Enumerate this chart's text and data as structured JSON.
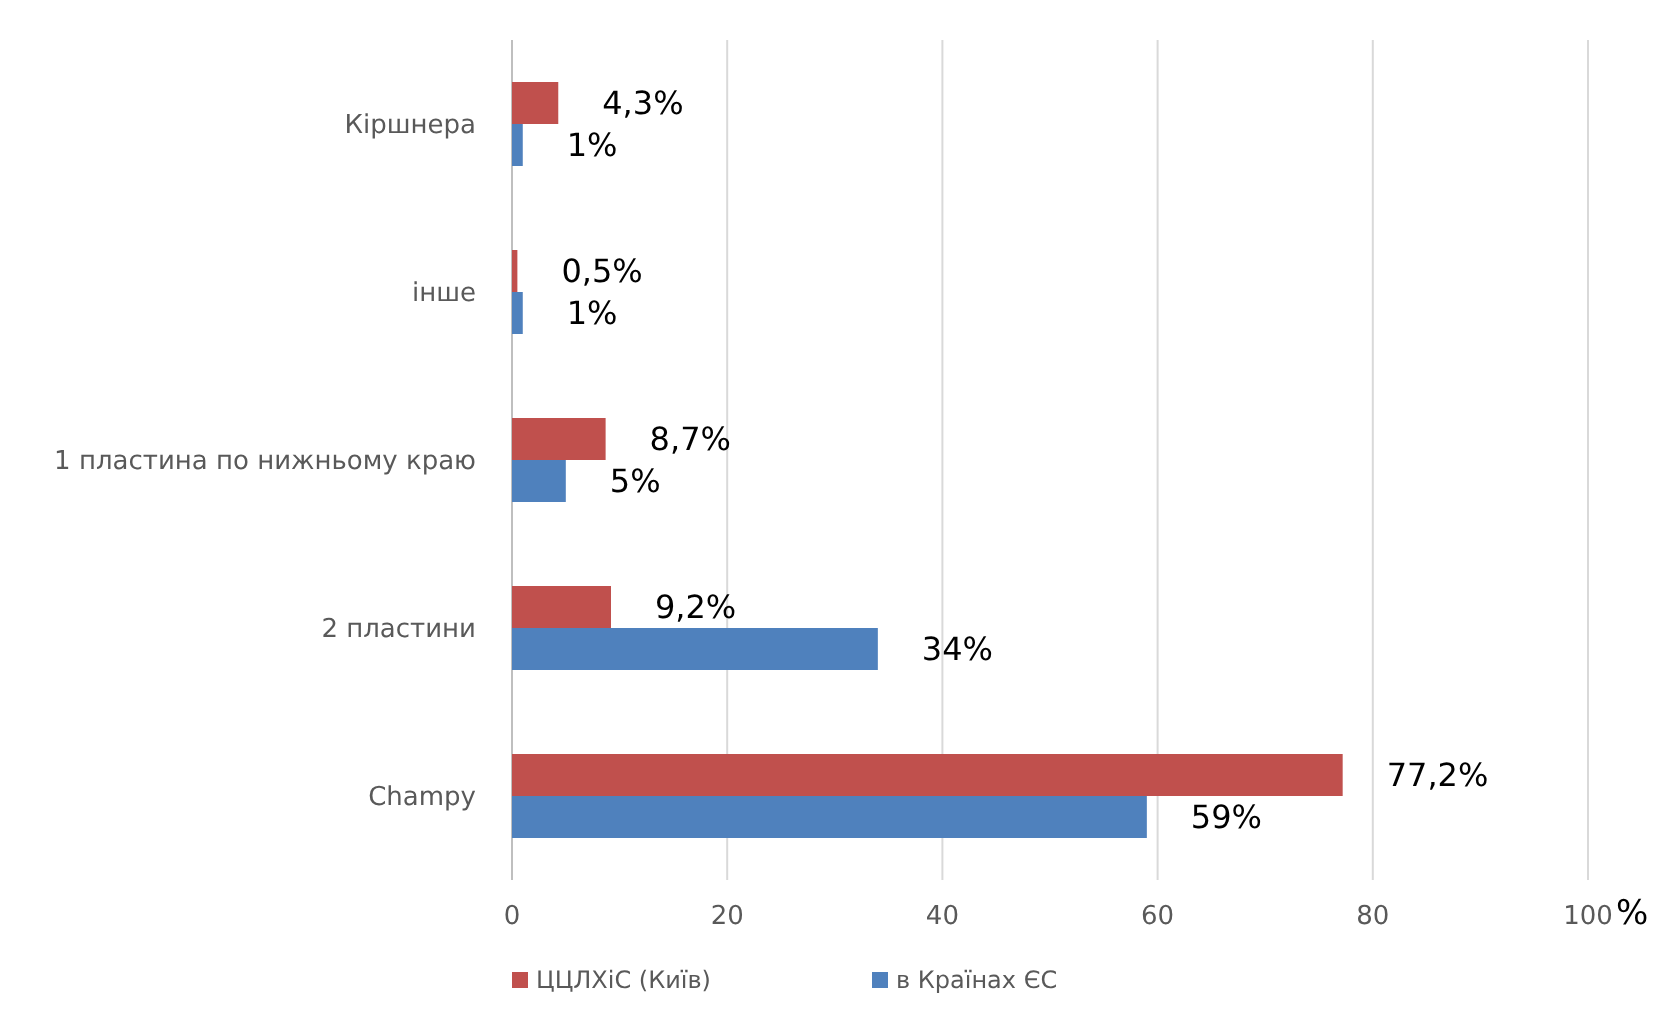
{
  "chart_data": {
    "type": "bar",
    "orientation": "horizontal",
    "categories": [
      "Кіршнера",
      "інше",
      "1 пластина по нижньому краю",
      "2 пластини",
      "Champy"
    ],
    "series": [
      {
        "name": "ЦЦЛХіС (Київ)",
        "color": "#c0504d",
        "values": [
          4.3,
          0.5,
          8.7,
          9.2,
          77.2
        ],
        "value_labels": [
          "4,3%",
          "0,5%",
          "8,7%",
          "9,2%",
          "77,2%"
        ]
      },
      {
        "name": "в Країнах ЄС",
        "color": "#4f81bd",
        "values": [
          1,
          1,
          5,
          34,
          59
        ],
        "value_labels": [
          "1%",
          "1%",
          "5%",
          "34%",
          "59%"
        ]
      }
    ],
    "xlim": [
      0,
      100
    ],
    "xticks": [
      0,
      20,
      40,
      60,
      80,
      100
    ],
    "xlabel": "%",
    "grid": "x",
    "legend": "bottom"
  }
}
